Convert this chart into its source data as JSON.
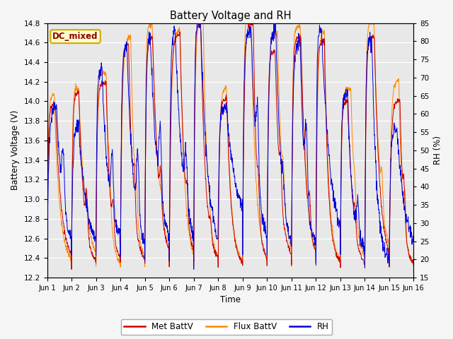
{
  "title": "Battery Voltage and RH",
  "xlabel": "Time",
  "ylabel_left": "Battery Voltage (V)",
  "ylabel_right": "RH (%)",
  "annotation": "DC_mixed",
  "ylim_left": [
    12.2,
    14.8
  ],
  "ylim_right": [
    15,
    85
  ],
  "yticks_left": [
    12.2,
    12.4,
    12.6,
    12.8,
    13.0,
    13.2,
    13.4,
    13.6,
    13.8,
    14.0,
    14.2,
    14.4,
    14.6,
    14.8
  ],
  "yticks_right": [
    15,
    20,
    25,
    30,
    35,
    40,
    45,
    50,
    55,
    60,
    65,
    70,
    75,
    80,
    85
  ],
  "xtick_labels": [
    "Jun 1",
    "Jun 2",
    "Jun 3",
    "Jun 4",
    "Jun 5",
    "Jun 6",
    "Jun 7",
    "Jun 8",
    "Jun 9",
    "Jun 10",
    "Jun 11",
    "Jun 12",
    "Jun 13",
    "Jun 14",
    "Jun 15",
    "Jun 16"
  ],
  "color_met": "#cc0000",
  "color_flux": "#ff8800",
  "color_rh": "#0000dd",
  "legend_labels": [
    "Met BattV",
    "Flux BattV",
    "RH"
  ],
  "plot_bg": "#e8e8e8",
  "fig_bg": "#f5f5f5",
  "n_days": 15,
  "pts_per_day": 96
}
